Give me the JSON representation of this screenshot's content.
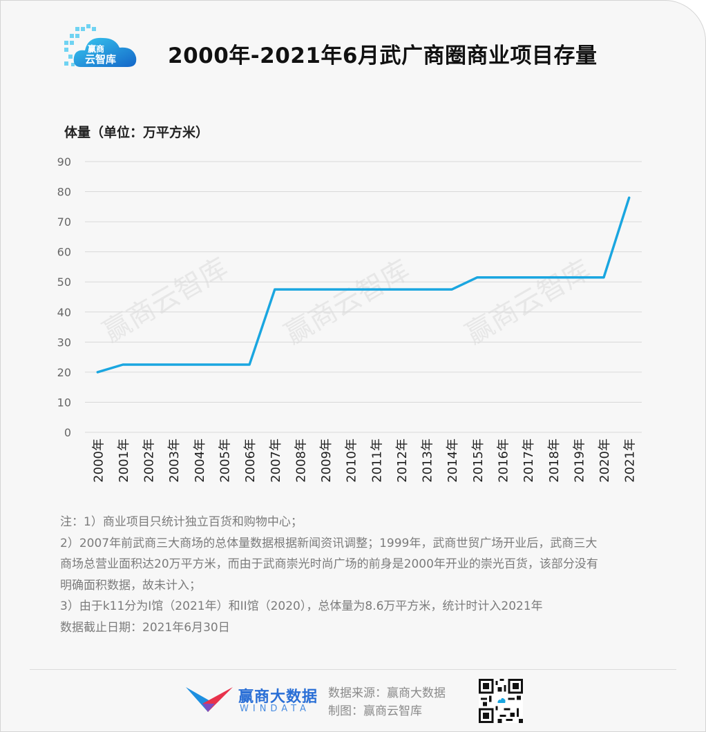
{
  "header": {
    "logo_text": "赢商云智库",
    "title": "2000年-2021年6月武广商圈商业项目存量"
  },
  "watermark": "赢商云智库",
  "chart_data": {
    "type": "line",
    "title": "2000年-2021年6月武广商圈商业项目存量",
    "ylabel": "体量（单位：万平方米）",
    "xlabel": "",
    "ylim": [
      0,
      90
    ],
    "yticks": [
      0,
      10,
      20,
      30,
      40,
      50,
      60,
      70,
      80,
      90
    ],
    "grid": true,
    "categories": [
      "2000年",
      "2001年",
      "2002年",
      "2003年",
      "2004年",
      "2005年",
      "2006年",
      "2007年",
      "2008年",
      "2009年",
      "2010年",
      "2011年",
      "2012年",
      "2013年",
      "2014年",
      "2015年",
      "2016年",
      "2017年",
      "2018年",
      "2019年",
      "2020年",
      "2021年"
    ],
    "series": [
      {
        "color": "#1aa6e0",
        "values": [
          20,
          22.5,
          22.5,
          22.5,
          22.5,
          22.5,
          22.5,
          47.5,
          47.5,
          47.5,
          47.5,
          47.5,
          47.5,
          47.5,
          47.5,
          51.5,
          51.5,
          51.5,
          51.5,
          51.5,
          51.5,
          78
        ]
      }
    ]
  },
  "notes": [
    "注：1）商业项目只统计独立百货和购物中心；",
    "2）2007年前武商三大商场的总体量数据根据新闻资讯调整；1999年，武商世贸广场开业后，武商三大",
    "商场总营业面积达20万平方米，而由于武商崇光时尚广场的前身是2000年开业的崇光百货，该部分没有",
    "明确面积数据，故未计入；",
    "3）由于k11分为I馆（2021年）和II馆（2020），总体量为8.6万平方米，统计时计入2021年",
    "数据截止日期：2021年6月30日"
  ],
  "footer": {
    "brand_cn": "赢商大数据",
    "brand_en": "WINDATA",
    "source": "数据来源：赢商大数据",
    "maker": "制图：赢商云智库"
  },
  "colors": {
    "line": "#1aa6e0",
    "grid": "#d8d8d8",
    "brand_blue": "#2a6fd6",
    "brand_red": "#e8324b"
  }
}
